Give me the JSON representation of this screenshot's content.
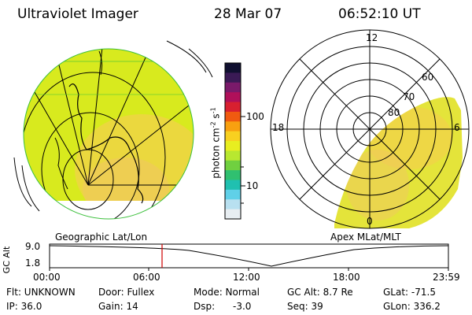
{
  "header": {
    "instrument": "Ultraviolet Imager",
    "date": "28 Mar 07",
    "time": "06:52:10 UT"
  },
  "colors": {
    "aurora_fill": "#d8ea1e",
    "aurora_bright": "#f2d24a",
    "line": "#000000",
    "marker": "#d00000",
    "land_green": "#3bbf3b"
  },
  "colorbar": {
    "unit_label": "photon cm",
    "exponent_1": "-2",
    "mid_label": "s",
    "exponent_2": "-1",
    "tick_high": "100",
    "tick_low": "10",
    "colors": [
      "#101030",
      "#3a1a55",
      "#7a1a6a",
      "#b0105a",
      "#d82030",
      "#f05a10",
      "#f8a010",
      "#f8d020",
      "#e8ee20",
      "#b8e830",
      "#70d040",
      "#30c070",
      "#20c0b0",
      "#60d0e8",
      "#b8e0f0",
      "#e8eef2"
    ]
  },
  "left_panel": {
    "caption": "Geographic Lat/Lon"
  },
  "right_panel": {
    "caption": "Apex MLat/MLT",
    "mlt_labels": {
      "top": "12",
      "left": "18",
      "right": "6",
      "bottom": "0"
    },
    "lat_labels": [
      "60",
      "70",
      "80"
    ]
  },
  "timeline": {
    "axis_label": "GC Alt",
    "y_ticks": [
      "9.0",
      "1.8"
    ],
    "x_ticks": [
      "00:00",
      "06:00",
      "12:00",
      "18:00",
      "23:59"
    ],
    "current_time": "06:52"
  },
  "info": {
    "row1": {
      "flt": "Flt: UNKNOWN",
      "door": "Door: Fullex",
      "mode": "Mode: Normal",
      "gcalt": "GC Alt: 8.7 Re",
      "glat": "GLat: -71.5"
    },
    "row2": {
      "ip": "IP: 36.0",
      "gain": "Gain: 14",
      "dsp_key": "Dsp:",
      "dsp_val": "-3.0",
      "seq": "Seq: 39",
      "glon": "GLon: 336.2"
    }
  }
}
